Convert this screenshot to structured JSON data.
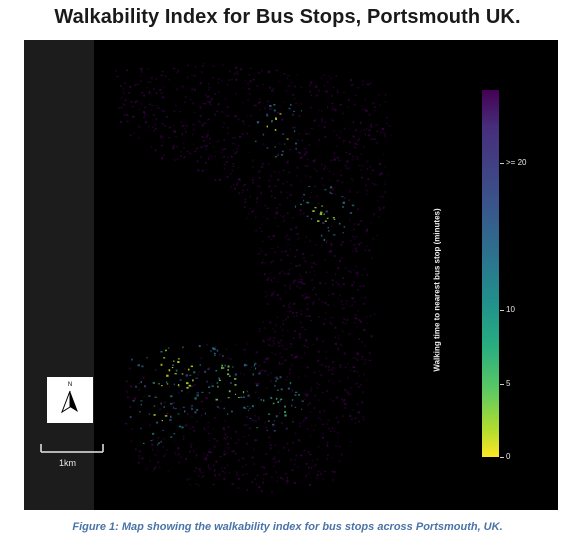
{
  "title": "Walkability Index for Bus Stops, Portsmouth UK.",
  "caption": "Figure 1: Map showing the walkability index for bus stops across Portsmouth, UK.",
  "map": {
    "north_label": "N",
    "scale_label": "1km",
    "colorbar": {
      "title": "Walking time to nearest bus stop (minutes)",
      "colormap": "viridis",
      "range_minutes": [
        0,
        25
      ],
      "ticks": [
        {
          "value": 0,
          "label": "0"
        },
        {
          "value": 5,
          "label": "5"
        },
        {
          "value": 10,
          "label": "10"
        },
        {
          "value": 20,
          "label": ">= 20"
        }
      ]
    },
    "colors": {
      "background": "#000000",
      "low": "#fde725",
      "mid": "#21918c",
      "high": "#440154"
    }
  }
}
